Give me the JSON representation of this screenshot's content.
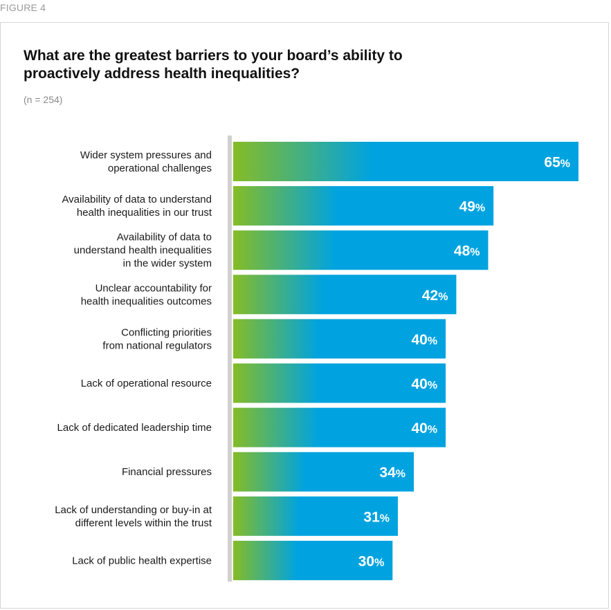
{
  "figure_label": "FIGURE 4",
  "title": "What are the greatest barriers to your board’s ability to proactively address health inequalities?",
  "subtitle": "(n = 254)",
  "colors": {
    "gradient_start": "#86bc25",
    "gradient_end": "#00a3e0",
    "axis": "#d0d0d0"
  },
  "chart_data": {
    "type": "bar",
    "orientation": "horizontal",
    "title": "What are the greatest barriers to your board’s ability to proactively address health inequalities?",
    "subtitle": "(n = 254)",
    "unit": "%",
    "grid": false,
    "legend": "none",
    "xlim": [
      0,
      65
    ],
    "categories": [
      [
        "Wider system pressures and",
        "operational challenges"
      ],
      [
        "Availability of data to understand",
        "health inequalities in our trust"
      ],
      [
        "Availability of data to",
        "understand health inequalities",
        "in the wider system"
      ],
      [
        "Unclear accountability for",
        "health inequalities outcomes"
      ],
      [
        "Conflicting priorities",
        "from national regulators"
      ],
      [
        "Lack of operational resource"
      ],
      [
        "Lack of dedicated leadership time"
      ],
      [
        "Financial pressures"
      ],
      [
        "Lack of understanding or buy-in at",
        "different levels within the trust"
      ],
      [
        "Lack of public health expertise"
      ]
    ],
    "values": [
      65,
      49,
      48,
      42,
      40,
      40,
      40,
      34,
      31,
      30
    ]
  }
}
